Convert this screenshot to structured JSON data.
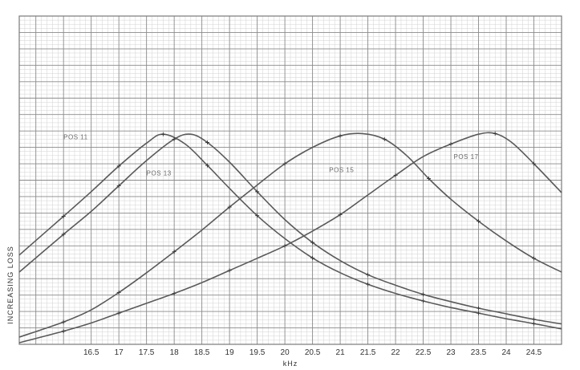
{
  "chart_data": {
    "type": "line",
    "xlabel": "kHz",
    "ylabel": "INCREASING LOSS",
    "title": "",
    "x_ticks": [
      "16.5",
      "17",
      "17.5",
      "18",
      "18.5",
      "19",
      "19.5",
      "20",
      "20.5",
      "21",
      "21.5",
      "22",
      "22.5",
      "23",
      "23.5",
      "24",
      "24.5"
    ],
    "xlim": [
      15.2,
      25.0
    ],
    "ylim": [
      0,
      10
    ],
    "grid": true,
    "legend": "none",
    "series": [
      {
        "name": "POS 11",
        "color": "#5a5a5a",
        "x": [
          15.2,
          16.0,
          16.5,
          17.0,
          17.5,
          17.8,
          18.2,
          18.6,
          19.0,
          19.5,
          20.0,
          20.5,
          21.0,
          21.5,
          22.0,
          22.5,
          23.0,
          23.5,
          24.0,
          24.5,
          25.0
        ],
        "y": [
          2.72,
          3.9,
          4.65,
          5.43,
          6.13,
          6.4,
          6.1,
          5.45,
          4.75,
          3.92,
          3.22,
          2.63,
          2.18,
          1.83,
          1.55,
          1.32,
          1.12,
          0.95,
          0.78,
          0.63,
          0.47
        ]
      },
      {
        "name": "POS 13",
        "color": "#5a5a5a",
        "x": [
          15.2,
          16.0,
          16.5,
          17.0,
          17.5,
          18.0,
          18.3,
          18.6,
          19.0,
          19.5,
          20.0,
          20.5,
          21.0,
          21.5,
          22.0,
          22.5,
          23.0,
          23.5,
          24.0,
          24.5,
          25.0
        ],
        "y": [
          2.2,
          3.35,
          4.05,
          4.83,
          5.6,
          6.25,
          6.4,
          6.15,
          5.55,
          4.65,
          3.8,
          3.1,
          2.55,
          2.12,
          1.8,
          1.52,
          1.3,
          1.1,
          0.93,
          0.76,
          0.62
        ]
      },
      {
        "name": "POS 15",
        "color": "#5a5a5a",
        "x": [
          15.2,
          16.0,
          16.5,
          17.0,
          17.5,
          18.0,
          18.5,
          19.0,
          19.5,
          20.0,
          20.5,
          21.0,
          21.4,
          21.8,
          22.2,
          22.6,
          23.0,
          23.5,
          24.0,
          24.5,
          25.0
        ],
        "y": [
          0.22,
          0.68,
          1.05,
          1.58,
          2.18,
          2.82,
          3.48,
          4.18,
          4.85,
          5.5,
          6.0,
          6.35,
          6.42,
          6.25,
          5.75,
          5.05,
          4.42,
          3.75,
          3.15,
          2.62,
          2.2
        ]
      },
      {
        "name": "POS 17",
        "color": "#5a5a5a",
        "x": [
          15.2,
          16.0,
          16.5,
          17.0,
          17.5,
          18.0,
          18.5,
          19.0,
          19.5,
          20.0,
          20.5,
          21.0,
          21.5,
          22.0,
          22.5,
          23.0,
          23.5,
          23.8,
          24.1,
          24.5,
          25.0
        ],
        "y": [
          0.05,
          0.4,
          0.65,
          0.95,
          1.25,
          1.55,
          1.88,
          2.25,
          2.62,
          3.0,
          3.45,
          3.95,
          4.55,
          5.15,
          5.72,
          6.1,
          6.4,
          6.42,
          6.15,
          5.5,
          4.62
        ]
      }
    ],
    "annotations": [
      {
        "text": "POS 11",
        "x": 16.0,
        "y": 6.25
      },
      {
        "text": "POS 13",
        "x": 17.5,
        "y": 5.15
      },
      {
        "text": "POS 15",
        "x": 20.8,
        "y": 5.25
      },
      {
        "text": "POS 17",
        "x": 23.05,
        "y": 5.65
      }
    ]
  }
}
